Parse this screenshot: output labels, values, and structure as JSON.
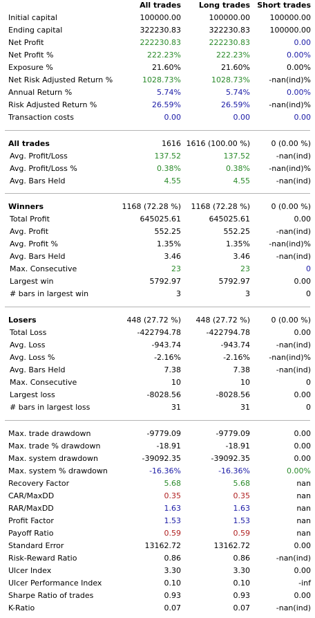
{
  "colors": {
    "green": "#2a8a2a",
    "blue": "#1a1aa6",
    "red": "#b02020",
    "black": "#000000",
    "separator": "#b4b4b4"
  },
  "headers": {
    "all": "All trades",
    "long": "Long trades",
    "short": "Short trades"
  },
  "sections": [
    {
      "rows": [
        {
          "label": "Initial capital",
          "all": "100000.00",
          "long": "100000.00",
          "short": "100000.00",
          "c": [
            "k",
            "k",
            "k"
          ]
        },
        {
          "label": "Ending capital",
          "all": "322230.83",
          "long": "322230.83",
          "short": "100000.00",
          "c": [
            "k",
            "k",
            "k"
          ]
        },
        {
          "label": "Net Profit",
          "all": "222230.83",
          "long": "222230.83",
          "short": "0.00",
          "c": [
            "g",
            "g",
            "b"
          ]
        },
        {
          "label": "Net Profit %",
          "all": "222.23%",
          "long": "222.23%",
          "short": "0.00%",
          "c": [
            "g",
            "g",
            "b"
          ]
        },
        {
          "label": "Exposure %",
          "all": "21.60%",
          "long": "21.60%",
          "short": "0.00%",
          "c": [
            "k",
            "k",
            "k"
          ]
        },
        {
          "label": "Net Risk Adjusted Return %",
          "all": "1028.73%",
          "long": "1028.73%",
          "short": "-nan(ind)%",
          "c": [
            "g",
            "g",
            "k"
          ]
        },
        {
          "label": "Annual Return %",
          "all": "5.74%",
          "long": "5.74%",
          "short": "0.00%",
          "c": [
            "b",
            "b",
            "b"
          ]
        },
        {
          "label": "Risk Adjusted Return %",
          "all": "26.59%",
          "long": "26.59%",
          "short": "-nan(ind)%",
          "c": [
            "b",
            "b",
            "k"
          ]
        },
        {
          "label": "Transaction costs",
          "all": "0.00",
          "long": "0.00",
          "short": "0.00",
          "c": [
            "b",
            "b",
            "b"
          ]
        }
      ]
    },
    {
      "title": {
        "label": "All trades",
        "all": "1616",
        "long": "1616 (100.00 %)",
        "short": "0 (0.00 %)"
      },
      "rows": [
        {
          "label": "Avg. Profit/Loss",
          "all": "137.52",
          "long": "137.52",
          "short": "-nan(ind)",
          "c": [
            "g",
            "g",
            "k"
          ]
        },
        {
          "label": "Avg. Profit/Loss %",
          "all": "0.38%",
          "long": "0.38%",
          "short": "-nan(ind)%",
          "c": [
            "g",
            "g",
            "k"
          ]
        },
        {
          "label": "Avg. Bars Held",
          "all": "4.55",
          "long": "4.55",
          "short": "-nan(ind)",
          "c": [
            "g",
            "g",
            "k"
          ]
        }
      ]
    },
    {
      "title": {
        "label": "Winners",
        "all": "1168 (72.28 %)",
        "long": "1168 (72.28 %)",
        "short": "0 (0.00 %)"
      },
      "rows": [
        {
          "label": "Total Profit",
          "all": "645025.61",
          "long": "645025.61",
          "short": "0.00",
          "c": [
            "k",
            "k",
            "k"
          ]
        },
        {
          "label": "Avg. Profit",
          "all": "552.25",
          "long": "552.25",
          "short": "-nan(ind)",
          "c": [
            "k",
            "k",
            "k"
          ]
        },
        {
          "label": "Avg. Profit %",
          "all": "1.35%",
          "long": "1.35%",
          "short": "-nan(ind)%",
          "c": [
            "k",
            "k",
            "k"
          ]
        },
        {
          "label": "Avg. Bars Held",
          "all": "3.46",
          "long": "3.46",
          "short": "-nan(ind)",
          "c": [
            "k",
            "k",
            "k"
          ]
        },
        {
          "label": "Max. Consecutive",
          "all": "23",
          "long": "23",
          "short": "0",
          "c": [
            "g",
            "g",
            "b"
          ]
        },
        {
          "label": "Largest win",
          "all": "5792.97",
          "long": "5792.97",
          "short": "0.00",
          "c": [
            "k",
            "k",
            "k"
          ]
        },
        {
          "label": "# bars in largest win",
          "all": "3",
          "long": "3",
          "short": "0",
          "c": [
            "k",
            "k",
            "k"
          ]
        }
      ]
    },
    {
      "title": {
        "label": "Losers",
        "all": "448 (27.72 %)",
        "long": "448 (27.72 %)",
        "short": "0 (0.00 %)"
      },
      "rows": [
        {
          "label": "Total Loss",
          "all": "-422794.78",
          "long": "-422794.78",
          "short": "0.00",
          "c": [
            "k",
            "k",
            "k"
          ]
        },
        {
          "label": "Avg. Loss",
          "all": "-943.74",
          "long": "-943.74",
          "short": "-nan(ind)",
          "c": [
            "k",
            "k",
            "k"
          ]
        },
        {
          "label": "Avg. Loss %",
          "all": "-2.16%",
          "long": "-2.16%",
          "short": "-nan(ind)%",
          "c": [
            "k",
            "k",
            "k"
          ]
        },
        {
          "label": "Avg. Bars Held",
          "all": "7.38",
          "long": "7.38",
          "short": "-nan(ind)",
          "c": [
            "k",
            "k",
            "k"
          ]
        },
        {
          "label": "Max. Consecutive",
          "all": "10",
          "long": "10",
          "short": "0",
          "c": [
            "k",
            "k",
            "k"
          ]
        },
        {
          "label": "Largest loss",
          "all": "-8028.56",
          "long": "-8028.56",
          "short": "0.00",
          "c": [
            "k",
            "k",
            "k"
          ]
        },
        {
          "label": "# bars in largest loss",
          "all": "31",
          "long": "31",
          "short": "0",
          "c": [
            "k",
            "k",
            "k"
          ]
        }
      ]
    },
    {
      "rows": [
        {
          "label": "Max. trade drawdown",
          "all": "-9779.09",
          "long": "-9779.09",
          "short": "0.00",
          "c": [
            "k",
            "k",
            "k"
          ]
        },
        {
          "label": "Max. trade % drawdown",
          "all": "-18.91",
          "long": "-18.91",
          "short": "0.00",
          "c": [
            "k",
            "k",
            "k"
          ]
        },
        {
          "label": "Max. system drawdown",
          "all": "-39092.35",
          "long": "-39092.35",
          "short": "0.00",
          "c": [
            "k",
            "k",
            "k"
          ]
        },
        {
          "label": "Max. system % drawdown",
          "all": "-16.36%",
          "long": "-16.36%",
          "short": "0.00%",
          "c": [
            "b",
            "b",
            "g"
          ]
        },
        {
          "label": "Recovery Factor",
          "all": "5.68",
          "long": "5.68",
          "short": "nan",
          "c": [
            "g",
            "g",
            "k"
          ]
        },
        {
          "label": "CAR/MaxDD",
          "all": "0.35",
          "long": "0.35",
          "short": "nan",
          "c": [
            "r",
            "r",
            "k"
          ]
        },
        {
          "label": "RAR/MaxDD",
          "all": "1.63",
          "long": "1.63",
          "short": "nan",
          "c": [
            "b",
            "b",
            "k"
          ]
        },
        {
          "label": "Profit Factor",
          "all": "1.53",
          "long": "1.53",
          "short": "nan",
          "c": [
            "b",
            "b",
            "k"
          ]
        },
        {
          "label": "Payoff Ratio",
          "all": "0.59",
          "long": "0.59",
          "short": "nan",
          "c": [
            "r",
            "r",
            "k"
          ]
        },
        {
          "label": "Standard Error",
          "all": "13162.72",
          "long": "13162.72",
          "short": "0.00",
          "c": [
            "k",
            "k",
            "k"
          ]
        },
        {
          "label": "Risk-Reward Ratio",
          "all": "0.86",
          "long": "0.86",
          "short": "-nan(ind)",
          "c": [
            "k",
            "k",
            "k"
          ]
        },
        {
          "label": "Ulcer Index",
          "all": "3.30",
          "long": "3.30",
          "short": "0.00",
          "c": [
            "k",
            "k",
            "k"
          ]
        },
        {
          "label": "Ulcer Performance Index",
          "all": "0.10",
          "long": "0.10",
          "short": "-inf",
          "c": [
            "k",
            "k",
            "k"
          ]
        },
        {
          "label": "Sharpe Ratio of trades",
          "all": "0.93",
          "long": "0.93",
          "short": "0.00",
          "c": [
            "k",
            "k",
            "k"
          ]
        },
        {
          "label": "K-Ratio",
          "all": "0.07",
          "long": "0.07",
          "short": "-nan(ind)",
          "c": [
            "k",
            "k",
            "k"
          ]
        }
      ]
    }
  ]
}
